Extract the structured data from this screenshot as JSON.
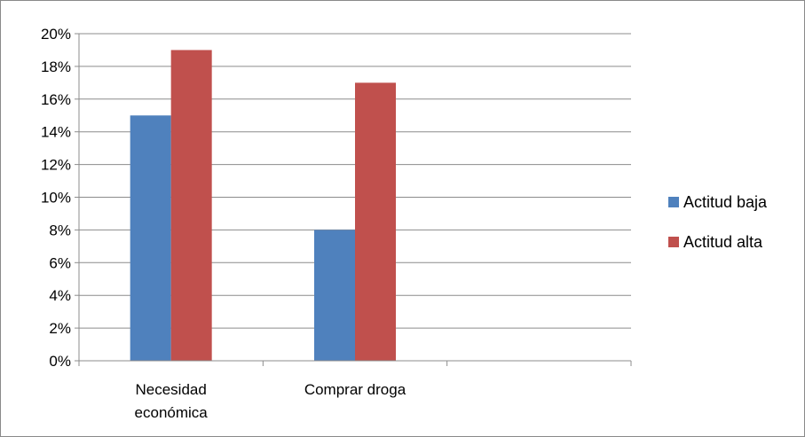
{
  "chart_data": {
    "type": "bar",
    "categories": [
      "Necesidad económica",
      "Comprar droga",
      ""
    ],
    "category_label_lines": [
      [
        "Necesidad",
        "económica"
      ],
      [
        "Comprar droga"
      ],
      []
    ],
    "series": [
      {
        "name": "Actitud baja",
        "values": [
          15,
          8,
          null
        ],
        "color": "#4F81BD"
      },
      {
        "name": "Actitud alta",
        "values": [
          19,
          17,
          null
        ],
        "color": "#C0504D"
      }
    ],
    "title": "",
    "xlabel": "",
    "ylabel": "",
    "ylim": [
      0,
      20
    ],
    "y_ticks": [
      0,
      2,
      4,
      6,
      8,
      10,
      12,
      14,
      16,
      18,
      20
    ],
    "y_tick_format": "percent",
    "grid": true,
    "grid_color": "#8c8c8c",
    "legend_position": "right"
  }
}
